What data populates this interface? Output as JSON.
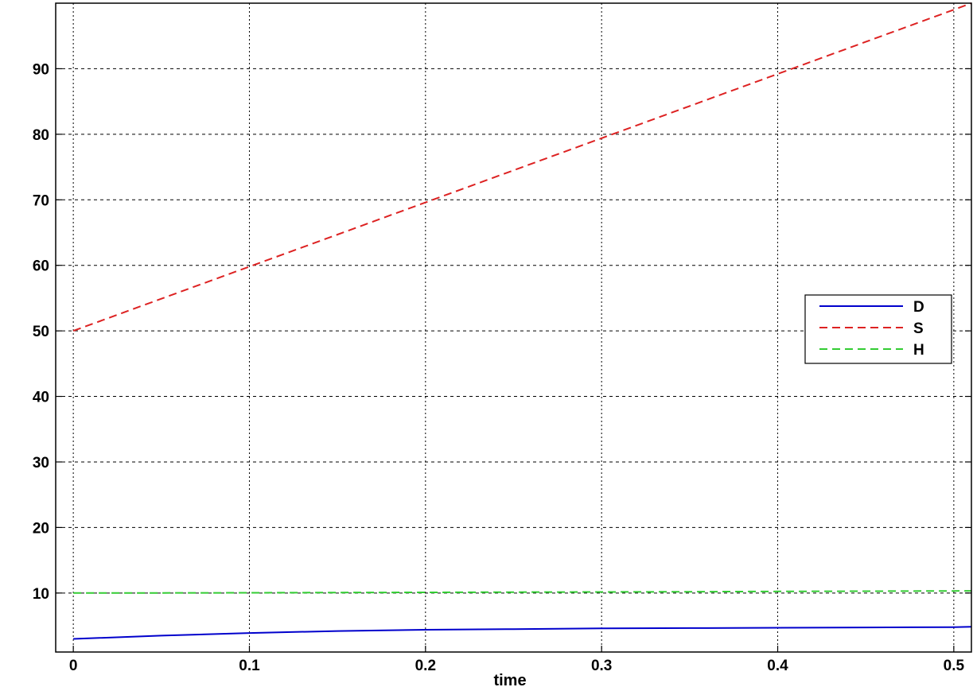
{
  "chart_data": {
    "type": "line",
    "title": "",
    "xlabel": "time",
    "ylabel": "",
    "xlim": [
      -0.01,
      0.51
    ],
    "ylim": [
      1,
      100
    ],
    "x_ticks": [
      0,
      0.1,
      0.2,
      0.3,
      0.4,
      0.5
    ],
    "x_tick_labels": [
      "0",
      "0.1",
      "0.2",
      "0.3",
      "0.4",
      "0.5"
    ],
    "y_ticks": [
      10,
      20,
      30,
      40,
      50,
      60,
      70,
      80,
      90
    ],
    "y_tick_labels": [
      "10",
      "20",
      "30",
      "40",
      "50",
      "60",
      "70",
      "80",
      "90"
    ],
    "grid": true,
    "legend_position": "right",
    "x": [
      0,
      0.05,
      0.1,
      0.15,
      0.2,
      0.25,
      0.3,
      0.35,
      0.4,
      0.45,
      0.5,
      0.51
    ],
    "series": [
      {
        "name": "D",
        "color": "#0000cc",
        "dash": "solid",
        "values": [
          3.0,
          3.5,
          3.9,
          4.2,
          4.4,
          4.5,
          4.6,
          4.65,
          4.7,
          4.75,
          4.8,
          4.85
        ]
      },
      {
        "name": "S",
        "color": "#dd2222",
        "dash": "dashed",
        "values": [
          50.0,
          54.9,
          59.8,
          64.7,
          69.6,
          74.5,
          79.4,
          84.3,
          89.2,
          94.1,
          99.0,
          100.0
        ]
      },
      {
        "name": "H",
        "color": "#33cc33",
        "dash": "dashed",
        "values": [
          10.0,
          10.02,
          10.04,
          10.07,
          10.1,
          10.13,
          10.16,
          10.2,
          10.24,
          10.28,
          10.32,
          10.33
        ]
      }
    ]
  }
}
